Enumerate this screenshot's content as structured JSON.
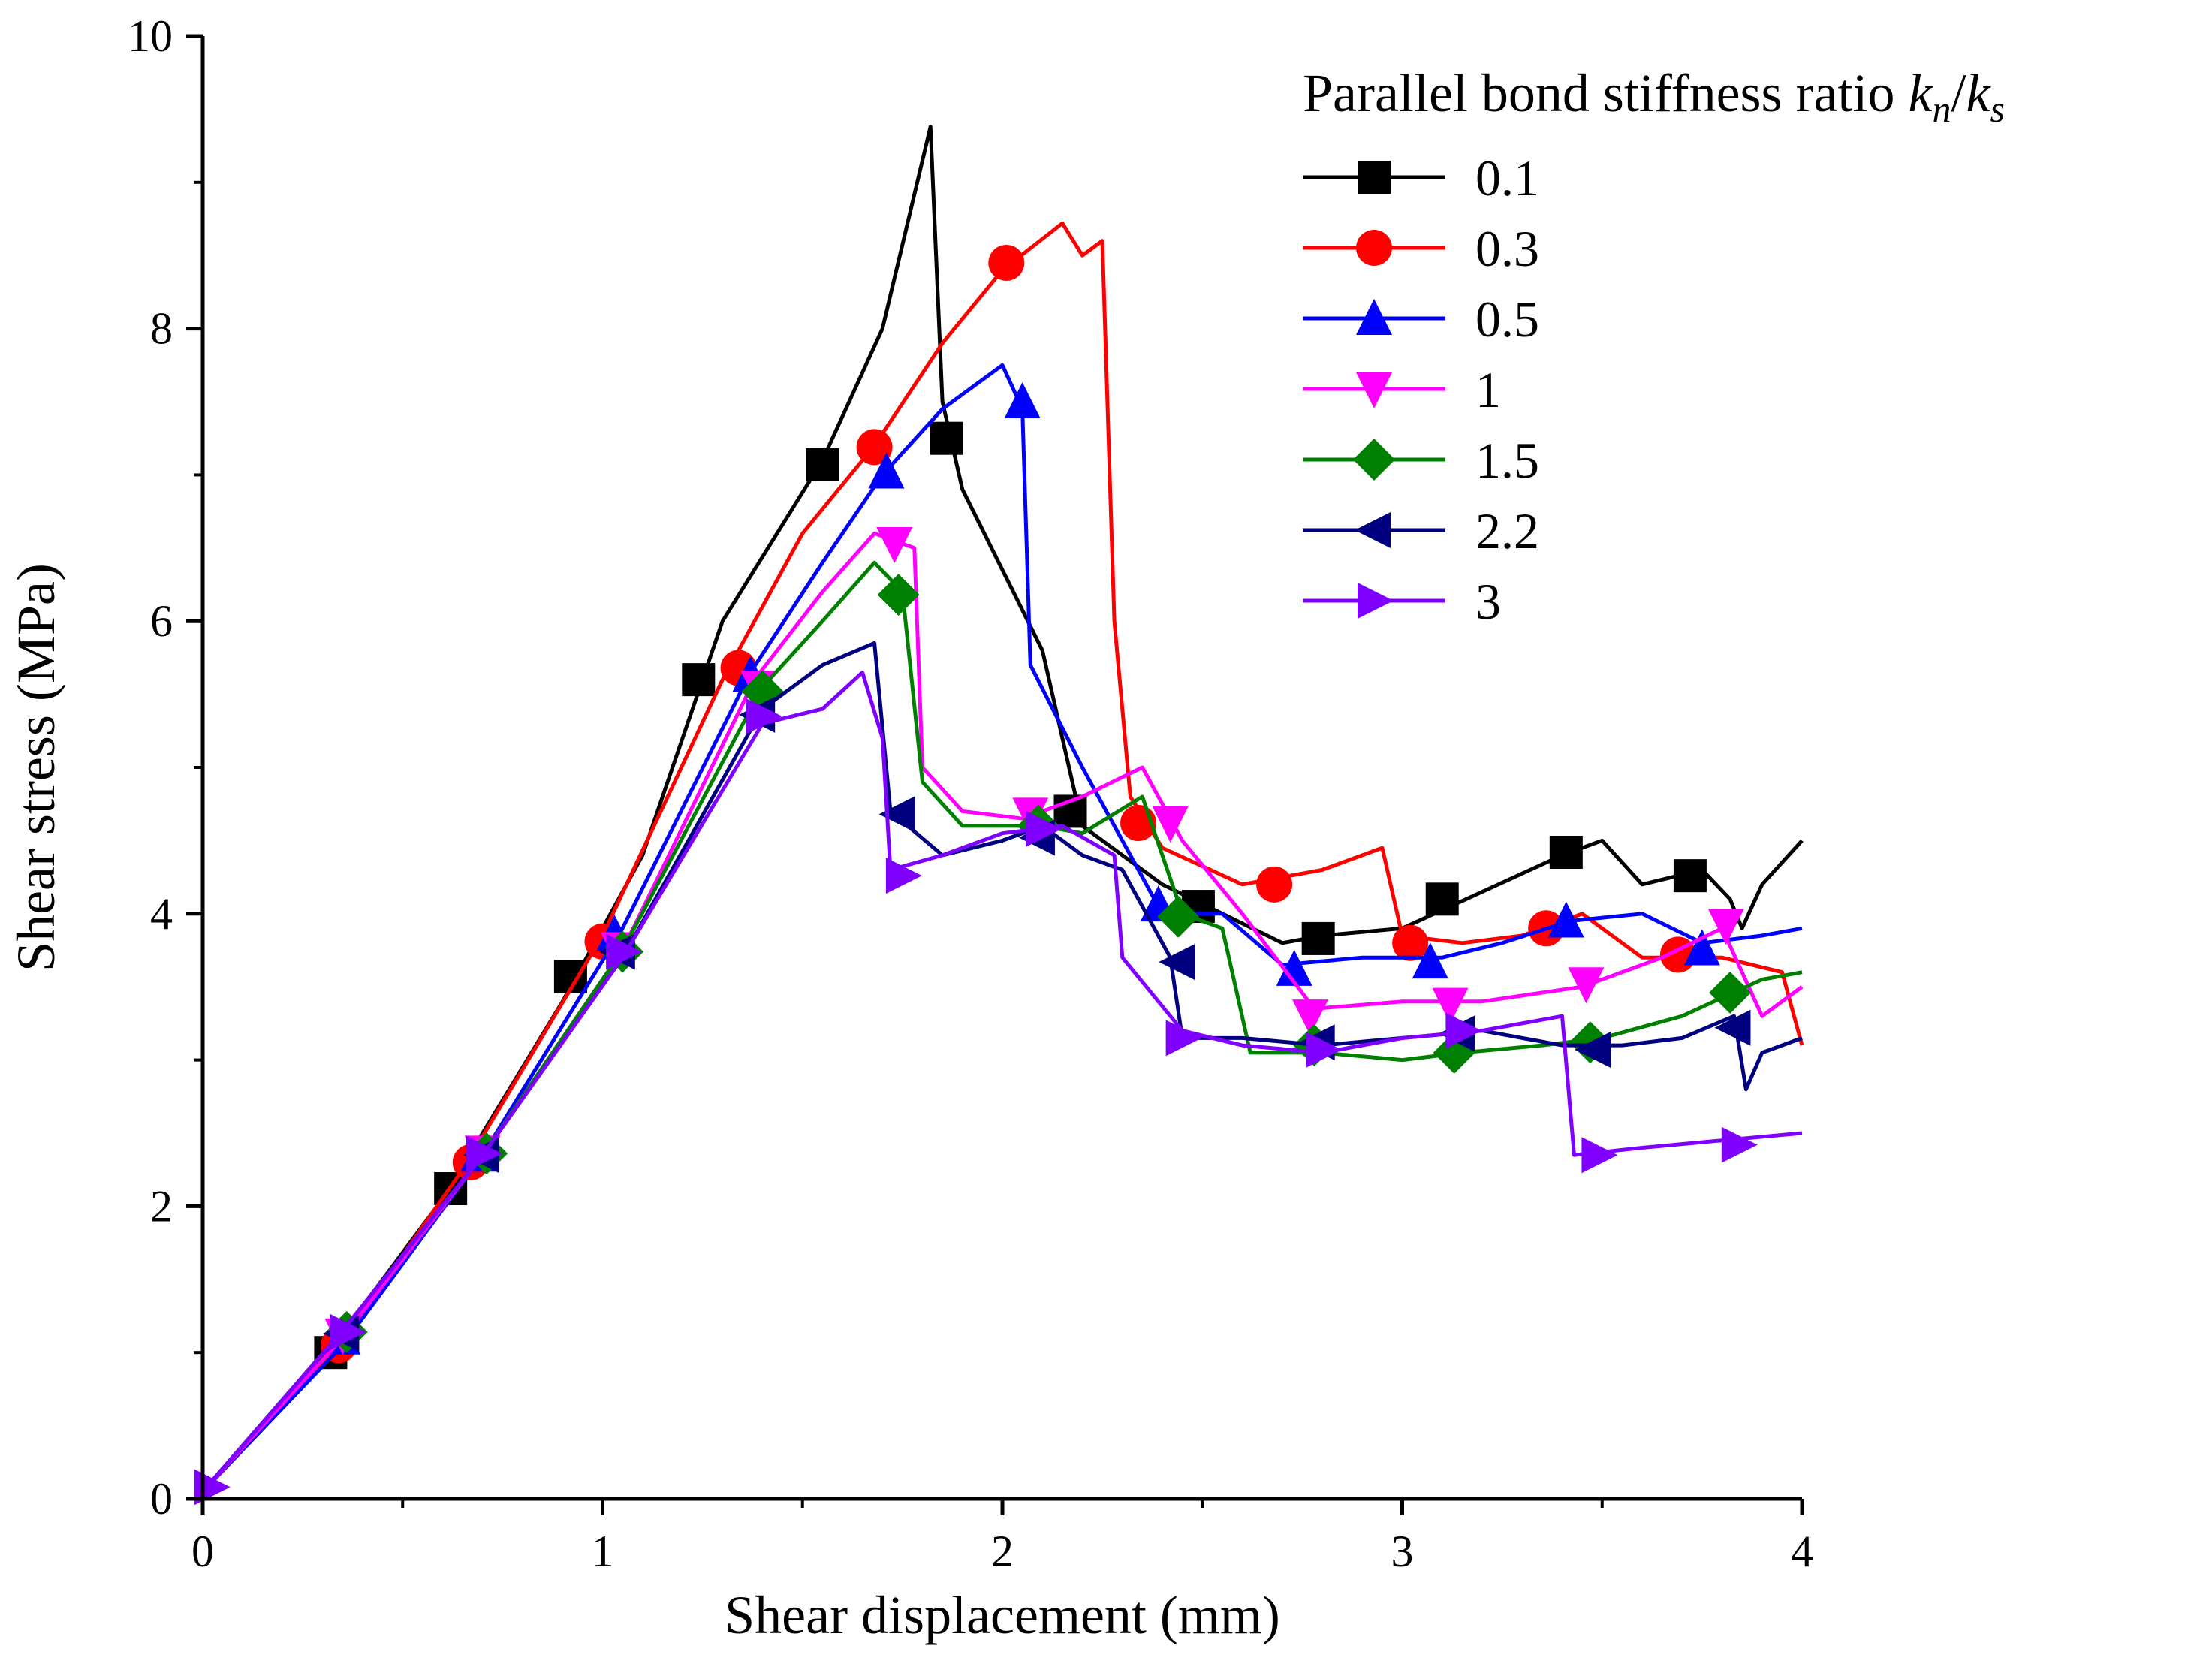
{
  "chart_data": {
    "type": "line",
    "xlabel": "Shear displacement (mm)",
    "ylabel": "Shear stress (MPa)",
    "xlim": [
      0,
      4
    ],
    "ylim": [
      0,
      10
    ],
    "xticks": [
      "0",
      "1",
      "2",
      "3",
      "4"
    ],
    "yticks": [
      "0",
      "2",
      "4",
      "6",
      "8",
      "10"
    ],
    "legend": {
      "title": "Parallel bond stiffness ratio ",
      "title_k1": "k",
      "title_sub1": "n",
      "title_slash": "/",
      "title_k2": "k",
      "title_sub2": "s",
      "placement": "top-right"
    },
    "series": [
      {
        "name": "0.1",
        "color": "#000000",
        "marker": "square",
        "points": [
          [
            0,
            0.05
          ],
          [
            0.3,
            0.95
          ],
          [
            0.6,
            2.05
          ],
          [
            0.9,
            3.4
          ],
          [
            1.1,
            4.4
          ],
          [
            1.3,
            6.0
          ],
          [
            1.55,
            7.1
          ],
          [
            1.7,
            8.0
          ],
          [
            1.82,
            9.38
          ],
          [
            1.85,
            7.5
          ],
          [
            1.9,
            6.9
          ],
          [
            2.1,
            5.8
          ],
          [
            2.2,
            4.6
          ],
          [
            2.4,
            4.2
          ],
          [
            2.55,
            4.0
          ],
          [
            2.7,
            3.8
          ],
          [
            2.8,
            3.85
          ],
          [
            3.0,
            3.9
          ],
          [
            3.2,
            4.15
          ],
          [
            3.4,
            4.4
          ],
          [
            3.5,
            4.5
          ],
          [
            3.6,
            4.2
          ],
          [
            3.75,
            4.3
          ],
          [
            3.82,
            4.1
          ],
          [
            3.85,
            3.9
          ],
          [
            3.9,
            4.2
          ],
          [
            4.0,
            4.5
          ]
        ],
        "markers": [
          [
            0.32,
            1.0
          ],
          [
            0.62,
            2.12
          ],
          [
            0.92,
            3.57
          ],
          [
            1.24,
            5.6
          ],
          [
            1.55,
            7.07
          ],
          [
            1.86,
            7.25
          ],
          [
            2.17,
            4.7
          ],
          [
            2.49,
            4.05
          ],
          [
            2.79,
            3.83
          ],
          [
            3.1,
            4.1
          ],
          [
            3.41,
            4.42
          ],
          [
            3.72,
            4.26
          ]
        ]
      },
      {
        "name": "0.3",
        "color": "#ff0000",
        "marker": "circle",
        "points": [
          [
            0,
            0.05
          ],
          [
            0.33,
            1.0
          ],
          [
            0.65,
            2.25
          ],
          [
            1.0,
            3.85
          ],
          [
            1.3,
            5.6
          ],
          [
            1.5,
            6.6
          ],
          [
            1.68,
            7.2
          ],
          [
            1.85,
            7.9
          ],
          [
            2.0,
            8.4
          ],
          [
            2.15,
            8.72
          ],
          [
            2.2,
            8.5
          ],
          [
            2.25,
            8.6
          ],
          [
            2.28,
            6.0
          ],
          [
            2.32,
            4.8
          ],
          [
            2.4,
            4.45
          ],
          [
            2.6,
            4.2
          ],
          [
            2.8,
            4.3
          ],
          [
            2.95,
            4.45
          ],
          [
            3.0,
            3.85
          ],
          [
            3.15,
            3.8
          ],
          [
            3.3,
            3.85
          ],
          [
            3.45,
            4.0
          ],
          [
            3.6,
            3.7
          ],
          [
            3.8,
            3.7
          ],
          [
            3.95,
            3.6
          ],
          [
            4.0,
            3.1
          ]
        ],
        "markers": [
          [
            0.34,
            1.05
          ],
          [
            0.67,
            2.3
          ],
          [
            1.0,
            3.81
          ],
          [
            1.34,
            5.68
          ],
          [
            1.68,
            7.19
          ],
          [
            2.01,
            8.45
          ],
          [
            2.34,
            4.62
          ],
          [
            2.68,
            4.2
          ],
          [
            3.02,
            3.8
          ],
          [
            3.36,
            3.9
          ],
          [
            3.69,
            3.72
          ]
        ]
      },
      {
        "name": "0.5",
        "color": "#0000ff",
        "marker": "triangle-up",
        "points": [
          [
            0,
            0.05
          ],
          [
            0.35,
            1.05
          ],
          [
            0.7,
            2.35
          ],
          [
            1.05,
            3.9
          ],
          [
            1.37,
            5.65
          ],
          [
            1.55,
            6.4
          ],
          [
            1.7,
            7.0
          ],
          [
            1.85,
            7.45
          ],
          [
            2.0,
            7.75
          ],
          [
            2.05,
            7.45
          ],
          [
            2.07,
            5.7
          ],
          [
            2.2,
            5.0
          ],
          [
            2.3,
            4.5
          ],
          [
            2.4,
            4.0
          ],
          [
            2.55,
            4.0
          ],
          [
            2.7,
            3.65
          ],
          [
            2.9,
            3.7
          ],
          [
            3.1,
            3.7
          ],
          [
            3.25,
            3.8
          ],
          [
            3.42,
            3.95
          ],
          [
            3.6,
            4.0
          ],
          [
            3.75,
            3.8
          ],
          [
            3.9,
            3.85
          ],
          [
            4.0,
            3.9
          ]
        ],
        "markers": [
          [
            0.35,
            1.1
          ],
          [
            0.69,
            2.35
          ],
          [
            1.03,
            3.86
          ],
          [
            1.37,
            5.63
          ],
          [
            1.71,
            7.02
          ],
          [
            2.05,
            7.5
          ],
          [
            2.39,
            4.06
          ],
          [
            2.73,
            3.62
          ],
          [
            3.07,
            3.67
          ],
          [
            3.41,
            3.95
          ],
          [
            3.75,
            3.76
          ]
        ]
      },
      {
        "name": "1",
        "color": "#ff00ff",
        "marker": "triangle-down",
        "points": [
          [
            0,
            0.05
          ],
          [
            0.35,
            1.1
          ],
          [
            0.7,
            2.35
          ],
          [
            1.05,
            3.75
          ],
          [
            1.38,
            5.6
          ],
          [
            1.55,
            6.2
          ],
          [
            1.68,
            6.6
          ],
          [
            1.78,
            6.5
          ],
          [
            1.8,
            5.0
          ],
          [
            1.9,
            4.7
          ],
          [
            2.05,
            4.65
          ],
          [
            2.2,
            4.8
          ],
          [
            2.35,
            5.0
          ],
          [
            2.45,
            4.5
          ],
          [
            2.6,
            4.0
          ],
          [
            2.78,
            3.35
          ],
          [
            3.0,
            3.4
          ],
          [
            3.2,
            3.4
          ],
          [
            3.45,
            3.5
          ],
          [
            3.65,
            3.7
          ],
          [
            3.8,
            3.9
          ],
          [
            3.9,
            3.3
          ],
          [
            4.0,
            3.5
          ]
        ],
        "markers": [
          [
            0.35,
            1.12
          ],
          [
            0.7,
            2.37
          ],
          [
            1.04,
            3.76
          ],
          [
            1.39,
            5.55
          ],
          [
            1.73,
            6.53
          ],
          [
            2.07,
            4.68
          ],
          [
            2.42,
            4.62
          ],
          [
            2.77,
            3.3
          ],
          [
            3.12,
            3.38
          ],
          [
            3.46,
            3.52
          ],
          [
            3.81,
            3.92
          ]
        ]
      },
      {
        "name": "1.5",
        "color": "#008000",
        "marker": "diamond",
        "points": [
          [
            0,
            0.05
          ],
          [
            0.35,
            1.15
          ],
          [
            0.7,
            2.35
          ],
          [
            1.05,
            3.75
          ],
          [
            1.4,
            5.55
          ],
          [
            1.55,
            6.0
          ],
          [
            1.68,
            6.4
          ],
          [
            1.75,
            6.2
          ],
          [
            1.8,
            4.9
          ],
          [
            1.9,
            4.6
          ],
          [
            2.1,
            4.6
          ],
          [
            2.2,
            4.55
          ],
          [
            2.35,
            4.8
          ],
          [
            2.45,
            4.0
          ],
          [
            2.55,
            3.9
          ],
          [
            2.62,
            3.05
          ],
          [
            2.8,
            3.05
          ],
          [
            3.0,
            3.0
          ],
          [
            3.15,
            3.05
          ],
          [
            3.35,
            3.1
          ],
          [
            3.5,
            3.15
          ],
          [
            3.7,
            3.3
          ],
          [
            3.82,
            3.45
          ],
          [
            3.9,
            3.55
          ],
          [
            4.0,
            3.6
          ]
        ],
        "markers": [
          [
            0.36,
            1.14
          ],
          [
            0.71,
            2.36
          ],
          [
            1.05,
            3.74
          ],
          [
            1.4,
            5.52
          ],
          [
            1.74,
            6.18
          ],
          [
            2.09,
            4.6
          ],
          [
            2.44,
            3.98
          ],
          [
            2.78,
            3.1
          ],
          [
            3.13,
            3.05
          ],
          [
            3.47,
            3.12
          ],
          [
            3.82,
            3.46
          ]
        ]
      },
      {
        "name": "2.2",
        "color": "#000080",
        "marker": "triangle-left",
        "points": [
          [
            0,
            0.05
          ],
          [
            0.35,
            1.15
          ],
          [
            0.7,
            2.35
          ],
          [
            1.05,
            3.7
          ],
          [
            1.4,
            5.4
          ],
          [
            1.55,
            5.7
          ],
          [
            1.68,
            5.85
          ],
          [
            1.72,
            4.7
          ],
          [
            1.85,
            4.4
          ],
          [
            2.0,
            4.5
          ],
          [
            2.1,
            4.6
          ],
          [
            2.2,
            4.4
          ],
          [
            2.3,
            4.3
          ],
          [
            2.42,
            3.7
          ],
          [
            2.45,
            3.15
          ],
          [
            2.6,
            3.15
          ],
          [
            2.8,
            3.1
          ],
          [
            3.0,
            3.15
          ],
          [
            3.2,
            3.2
          ],
          [
            3.4,
            3.1
          ],
          [
            3.55,
            3.1
          ],
          [
            3.7,
            3.15
          ],
          [
            3.83,
            3.3
          ],
          [
            3.86,
            2.8
          ],
          [
            3.9,
            3.05
          ],
          [
            4.0,
            3.15
          ]
        ],
        "markers": [
          [
            0.35,
            1.13
          ],
          [
            0.7,
            2.35
          ],
          [
            1.04,
            3.74
          ],
          [
            1.39,
            5.36
          ],
          [
            1.74,
            4.68
          ],
          [
            2.09,
            4.52
          ],
          [
            2.44,
            3.67
          ],
          [
            2.79,
            3.12
          ],
          [
            3.14,
            3.18
          ],
          [
            3.48,
            3.07
          ],
          [
            3.83,
            3.22
          ]
        ]
      },
      {
        "name": "3",
        "color": "#8000ff",
        "marker": "triangle-right",
        "points": [
          [
            0,
            0.05
          ],
          [
            0.35,
            1.15
          ],
          [
            0.7,
            2.35
          ],
          [
            1.05,
            3.7
          ],
          [
            1.4,
            5.3
          ],
          [
            1.55,
            5.4
          ],
          [
            1.65,
            5.65
          ],
          [
            1.7,
            5.2
          ],
          [
            1.72,
            4.3
          ],
          [
            1.85,
            4.4
          ],
          [
            2.0,
            4.55
          ],
          [
            2.15,
            4.6
          ],
          [
            2.28,
            4.4
          ],
          [
            2.3,
            3.7
          ],
          [
            2.45,
            3.2
          ],
          [
            2.6,
            3.1
          ],
          [
            2.8,
            3.05
          ],
          [
            3.0,
            3.15
          ],
          [
            3.2,
            3.2
          ],
          [
            3.4,
            3.3
          ],
          [
            3.43,
            2.35
          ],
          [
            3.6,
            2.4
          ],
          [
            3.8,
            2.45
          ],
          [
            4.0,
            2.5
          ]
        ],
        "markers": [
          [
            0.02,
            0.08
          ],
          [
            0.36,
            1.14
          ],
          [
            0.7,
            2.36
          ],
          [
            1.05,
            3.74
          ],
          [
            1.4,
            5.35
          ],
          [
            1.75,
            4.26
          ],
          [
            2.1,
            4.58
          ],
          [
            2.45,
            3.15
          ],
          [
            2.8,
            3.07
          ],
          [
            3.15,
            3.2
          ],
          [
            3.49,
            2.35
          ],
          [
            3.84,
            2.42
          ]
        ]
      }
    ]
  }
}
